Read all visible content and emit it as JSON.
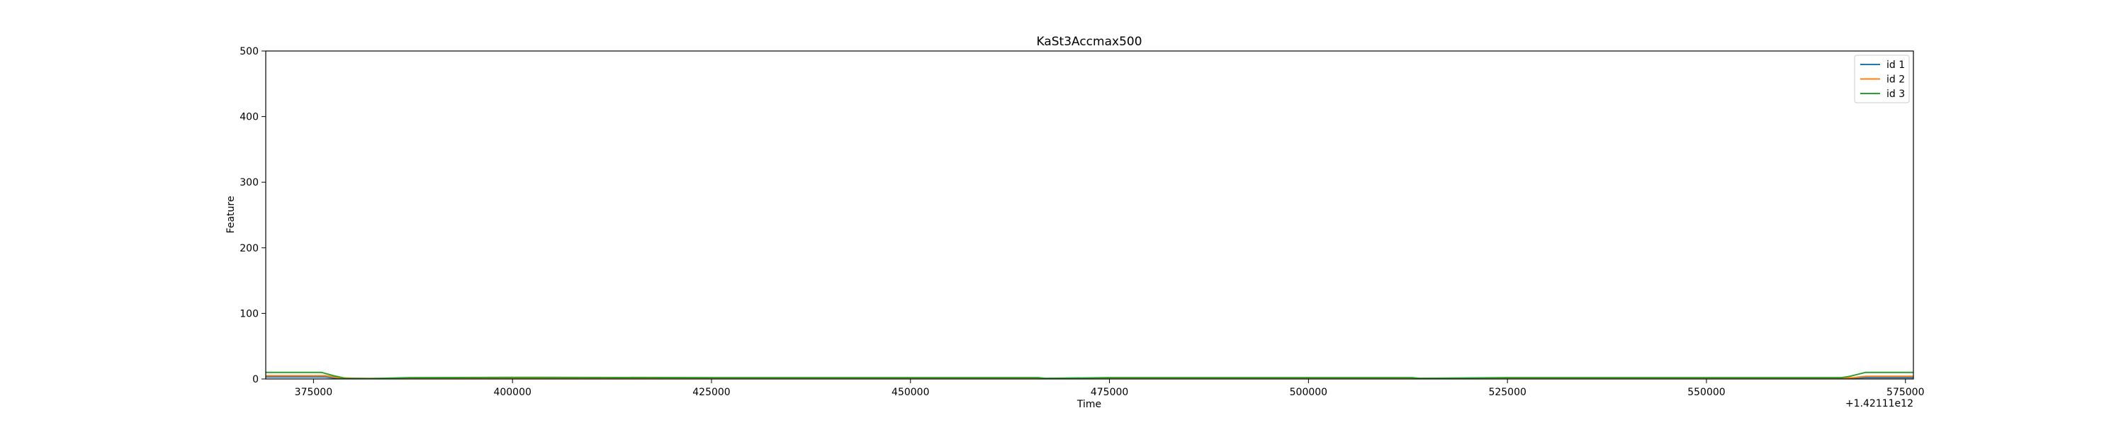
{
  "chart_data": {
    "type": "line",
    "title": "KaSt3Accmax500",
    "xlabel": "Time",
    "ylabel": "Feature",
    "x_offset_label": "+1.42111e12",
    "xlim": [
      369000,
      576000
    ],
    "ylim": [
      0,
      500
    ],
    "x_ticks": [
      375000,
      400000,
      425000,
      450000,
      475000,
      500000,
      525000,
      550000,
      575000
    ],
    "y_ticks": [
      0,
      100,
      200,
      300,
      400,
      500
    ],
    "legend_position": "upper-right",
    "grid": false,
    "series": [
      {
        "name": "id 1",
        "color": "#1f77b4",
        "x": [
          369000,
          375000,
          376500,
          378000,
          380000,
          385000,
          387000,
          400000,
          425000,
          450000,
          466000,
          467000,
          475000,
          500000,
          513000,
          514000,
          525000,
          550000,
          560000,
          567000,
          568500,
          570000,
          576000
        ],
        "y": [
          3,
          3,
          3,
          1,
          0.5,
          0.5,
          1,
          1,
          1,
          1,
          1,
          0.5,
          1,
          1,
          1,
          0.5,
          1,
          1,
          1,
          1,
          1.5,
          2,
          2
        ]
      },
      {
        "name": "id 2",
        "color": "#ff7f0e",
        "x": [
          369000,
          375000,
          376500,
          378000,
          380000,
          385000,
          387000,
          400000,
          425000,
          450000,
          475000,
          500000,
          525000,
          550000,
          560000,
          567000,
          568500,
          570000,
          576000
        ],
        "y": [
          5,
          5,
          5,
          2,
          1,
          0.5,
          1,
          1.5,
          1,
          1,
          1,
          1,
          1,
          1,
          1,
          1,
          2,
          4,
          4
        ]
      },
      {
        "name": "id 3",
        "color": "#2ca02c",
        "x": [
          369000,
          375000,
          376000,
          377500,
          379000,
          382000,
          387000,
          400000,
          425000,
          450000,
          466000,
          467000,
          475000,
          500000,
          513000,
          514000,
          525000,
          550000,
          560000,
          567000,
          568000,
          570000,
          576000
        ],
        "y": [
          10,
          10,
          10,
          5,
          1,
          0.5,
          2,
          2.5,
          2,
          2,
          2,
          1,
          2,
          2,
          2,
          1,
          2,
          2,
          2,
          2,
          4,
          10,
          10
        ]
      }
    ]
  }
}
